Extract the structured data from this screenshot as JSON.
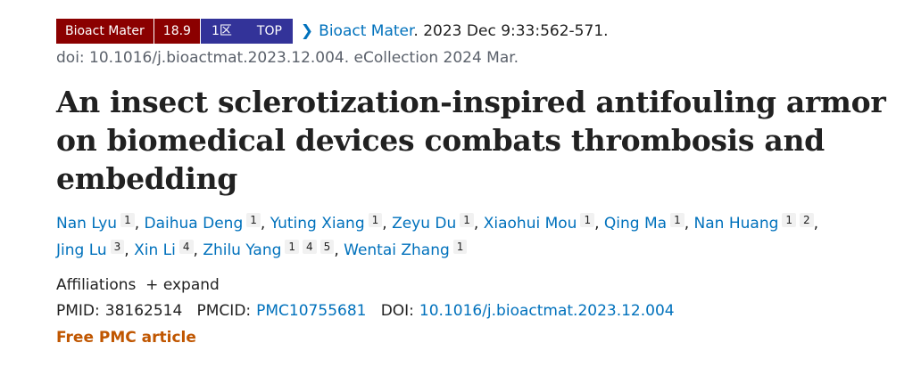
{
  "badges": {
    "journal": "Bioact Mater",
    "impact": "18.9",
    "zone": "1区",
    "top": "TOP"
  },
  "citation": {
    "journal_link": "Bioact Mater",
    "rest": ". 2023 Dec 9:33:562-571.",
    "doi_line": "doi: 10.1016/j.bioactmat.2023.12.004. eCollection 2024 Mar."
  },
  "title": "An insect sclerotization-inspired antifouling armor on biomedical devices combats thrombosis and embedding",
  "authors": [
    {
      "name": "Nan Lyu",
      "aff": [
        "1"
      ]
    },
    {
      "name": "Daihua Deng",
      "aff": [
        "1"
      ]
    },
    {
      "name": "Yuting Xiang",
      "aff": [
        "1"
      ]
    },
    {
      "name": "Zeyu Du",
      "aff": [
        "1"
      ]
    },
    {
      "name": "Xiaohui Mou",
      "aff": [
        "1"
      ]
    },
    {
      "name": "Qing Ma",
      "aff": [
        "1"
      ]
    },
    {
      "name": "Nan Huang",
      "aff": [
        "1",
        "2"
      ]
    },
    {
      "name": "Jing Lu",
      "aff": [
        "3"
      ]
    },
    {
      "name": "Xin Li",
      "aff": [
        "4"
      ]
    },
    {
      "name": "Zhilu Yang",
      "aff": [
        "1",
        "4",
        "5"
      ]
    },
    {
      "name": "Wentai Zhang",
      "aff": [
        "1"
      ]
    }
  ],
  "affiliations": {
    "label": "Affiliations",
    "expand": "+ expand"
  },
  "ids": {
    "pmid_label": "PMID:",
    "pmid": "38162514",
    "pmcid_label": "PMCID:",
    "pmcid": "PMC10755681",
    "doi_label": "DOI:",
    "doi": "10.1016/j.bioactmat.2023.12.004"
  },
  "free": "Free PMC article",
  "colors": {
    "link": "#0071bc",
    "badge_red": "#8b0000",
    "badge_blue": "#333399",
    "free": "#c05600"
  }
}
